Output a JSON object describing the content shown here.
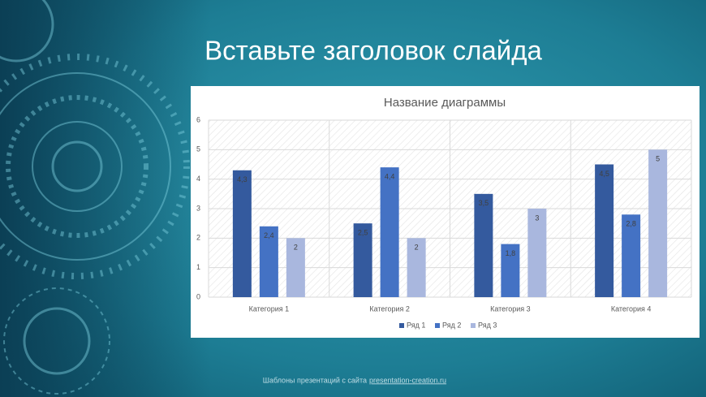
{
  "slide_title": "Вставьте заголовок слайда",
  "footer": {
    "text": "Шаблоны презентаций с сайта",
    "link": "presentation-creation.ru"
  },
  "chart_data": {
    "type": "bar",
    "title": "Название диаграммы",
    "categories": [
      "Категория 1",
      "Категория 2",
      "Категория 3",
      "Категория 4"
    ],
    "series": [
      {
        "name": "Ряд 1",
        "color": "#345a9e",
        "values": [
          4.3,
          2.5,
          3.5,
          4.5
        ],
        "value_labels": [
          "4,3",
          "2,5",
          "3,5",
          "4,5"
        ]
      },
      {
        "name": "Ряд 2",
        "color": "#4472c4",
        "values": [
          2.4,
          4.4,
          1.8,
          2.8
        ],
        "value_labels": [
          "2,4",
          "4,4",
          "1,8",
          "2,8"
        ]
      },
      {
        "name": "Ряд 3",
        "color": "#a9b7de",
        "values": [
          2,
          2,
          3,
          5
        ]
      }
    ],
    "ylim": [
      0,
      6
    ],
    "yticks": [
      0,
      1,
      2,
      3,
      4,
      5,
      6
    ],
    "grid": true,
    "legend": "bottom"
  }
}
